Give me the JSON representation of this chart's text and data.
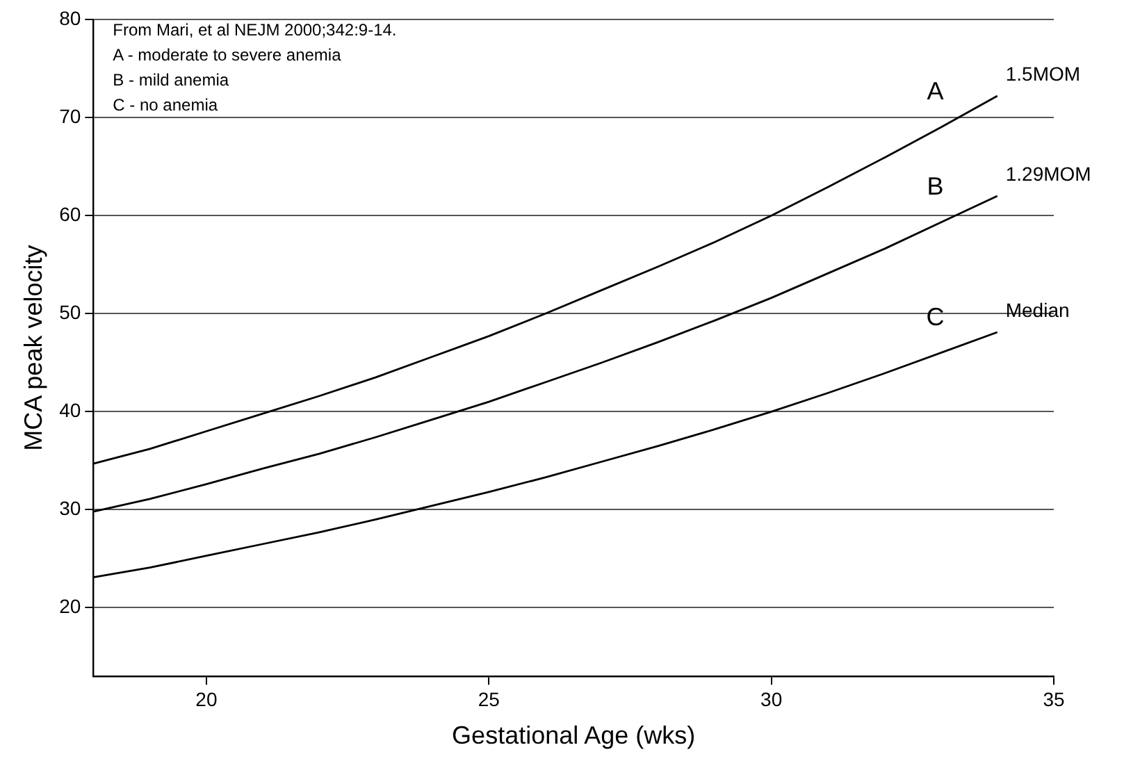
{
  "chart_data": {
    "type": "line",
    "xlabel": "Gestational Age (wks)",
    "ylabel": "MCA peak velocity",
    "x": [
      18,
      19,
      20,
      21,
      22,
      23,
      24,
      25,
      26,
      27,
      28,
      29,
      30,
      31,
      32,
      33,
      34
    ],
    "series": [
      {
        "name": "1.5MOM",
        "color": "#000000",
        "values": [
          34.7,
          36.2,
          38.0,
          39.8,
          41.6,
          43.5,
          45.6,
          47.7,
          50.0,
          52.4,
          54.8,
          57.3,
          60.0,
          62.9,
          65.9,
          69.0,
          72.2
        ]
      },
      {
        "name": "1.29MOM",
        "color": "#000000",
        "values": [
          29.8,
          31.1,
          32.6,
          34.2,
          35.7,
          37.4,
          39.2,
          41.0,
          43.0,
          45.0,
          47.1,
          49.3,
          51.6,
          54.1,
          56.6,
          59.3,
          62.0
        ]
      },
      {
        "name": "Median",
        "color": "#000000",
        "values": [
          23.1,
          24.1,
          25.3,
          26.5,
          27.7,
          29.0,
          30.4,
          31.8,
          33.3,
          34.9,
          36.5,
          38.2,
          40.0,
          41.9,
          43.9,
          46.0,
          48.1
        ]
      }
    ],
    "xlim": [
      18,
      35
    ],
    "xticks": [
      20,
      25,
      30,
      35
    ],
    "ylim": [
      13,
      80
    ],
    "yticks": [
      20,
      30,
      40,
      50,
      60,
      70,
      80
    ],
    "grid": "y",
    "legend": false,
    "marker": "none",
    "line_style": "solid",
    "annotations": [
      "From Mari, et al NEJM 2000;342:9-14.",
      "A - moderate to severe anemia",
      "B - mild anemia",
      "C - no anemia",
      "A",
      "B",
      "C"
    ]
  }
}
